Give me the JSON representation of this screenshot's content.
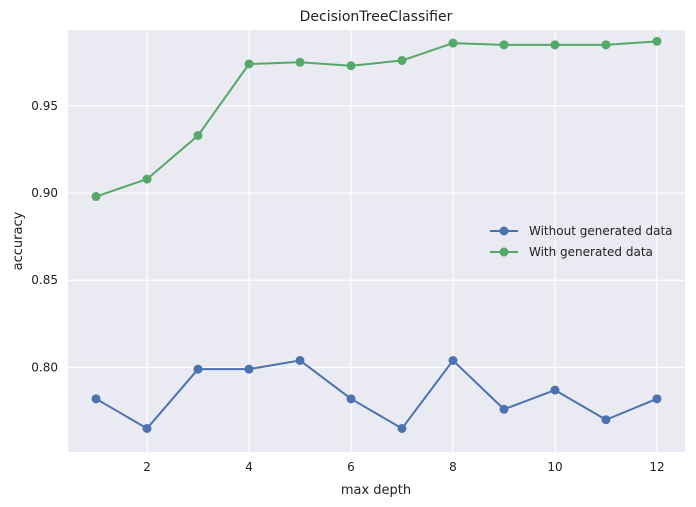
{
  "chart_data": {
    "type": "line",
    "title": "DecisionTreeClassifier",
    "xlabel": "max depth",
    "ylabel": "accuracy",
    "x": [
      1,
      2,
      3,
      4,
      5,
      6,
      7,
      8,
      9,
      10,
      11,
      12
    ],
    "xlim": [
      0.45,
      12.55
    ],
    "ylim": [
      0.7515,
      0.9935
    ],
    "xticks": [
      2,
      4,
      6,
      8,
      10,
      12
    ],
    "yticks": [
      0.8,
      0.85,
      0.9,
      0.95
    ],
    "ytick_labels": [
      "0.80",
      "0.85",
      "0.90",
      "0.95"
    ],
    "grid": true,
    "legend_position": "center-right",
    "series": [
      {
        "name": "Without generated data",
        "color": "#4c72b0",
        "values": [
          0.782,
          0.765,
          0.799,
          0.799,
          0.804,
          0.782,
          0.765,
          0.804,
          0.776,
          0.787,
          0.77,
          0.782
        ]
      },
      {
        "name": "With generated data",
        "color": "#55a868",
        "values": [
          0.898,
          0.908,
          0.933,
          0.974,
          0.975,
          0.973,
          0.976,
          0.986,
          0.985,
          0.985,
          0.985,
          0.987
        ]
      }
    ]
  }
}
